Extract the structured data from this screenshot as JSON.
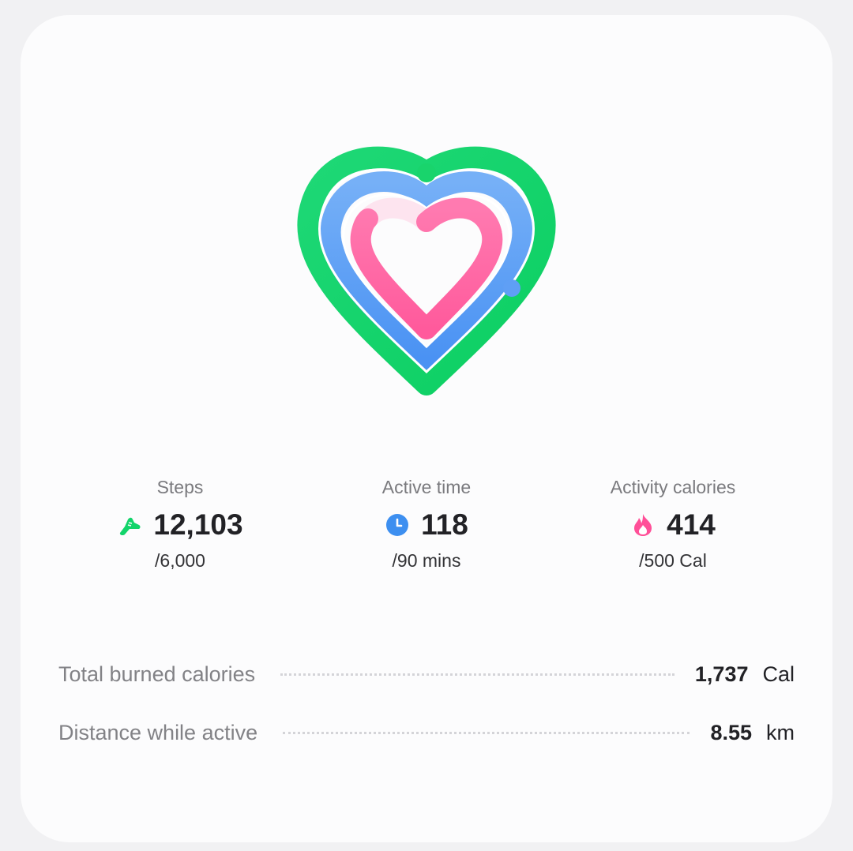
{
  "colors": {
    "steps_ring": "#12d46a",
    "active_ring": "#5aa0f5",
    "calories_ring": "#ff5fa0",
    "calories_track": "#fde4ef"
  },
  "stats": [
    {
      "label": "Steps",
      "icon": "shoe-icon",
      "value": "12,103",
      "goal": "/6,000"
    },
    {
      "label": "Active time",
      "icon": "clock-icon",
      "value": "118",
      "goal": "/90 mins"
    },
    {
      "label": "Activity calories",
      "icon": "flame-icon",
      "value": "414",
      "goal": "/500 Cal"
    }
  ],
  "details": [
    {
      "label": "Total burned calories",
      "value": "1,737",
      "unit": "Cal"
    },
    {
      "label": "Distance while active",
      "value": "8.55",
      "unit": "km"
    }
  ]
}
